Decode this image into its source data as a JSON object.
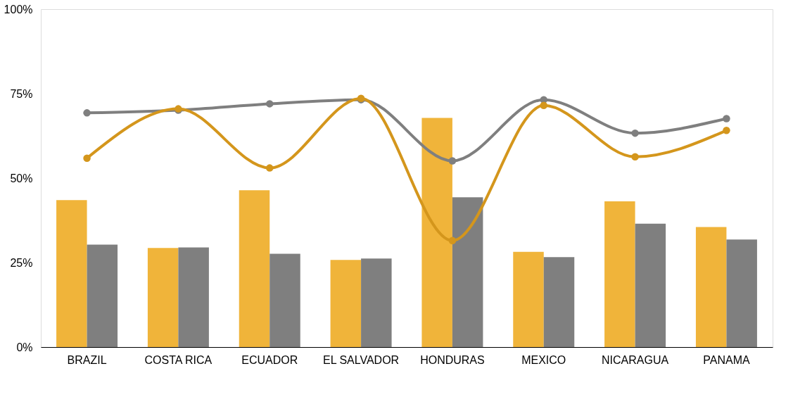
{
  "chart_data": {
    "type": "bar",
    "categories": [
      "BRAZIL",
      "COSTA RICA",
      "ECUADOR",
      "EL SALVADOR",
      "HONDURAS",
      "MEXICO",
      "NICARAGUA",
      "PANAMA"
    ],
    "series": [
      {
        "color": "#f0b43a",
        "values": [
          43.5,
          29.3,
          46.4,
          25.8,
          67.8,
          28.2,
          43.1,
          35.5
        ]
      },
      {
        "color": "#7f7f7f",
        "values": [
          30.3,
          29.5,
          27.6,
          26.2,
          44.3,
          26.6,
          36.5,
          31.8
        ]
      },
      {
        "type": "line",
        "color": "#7f7f7f",
        "marker": "circle",
        "values": [
          69.3,
          70.1,
          72.0,
          73.2,
          55.1,
          73.2,
          63.3,
          67.6
        ]
      },
      {
        "type": "line",
        "color": "#d4961c",
        "marker": "circle",
        "values": [
          55.9,
          70.5,
          53.0,
          73.6,
          31.5,
          71.5,
          56.3,
          64.1
        ]
      }
    ],
    "ylim": [
      0,
      100
    ],
    "yticks": [
      {
        "value": 0,
        "label": "0%"
      },
      {
        "value": 25,
        "label": "25%"
      },
      {
        "value": 50,
        "label": "50%"
      },
      {
        "value": 75,
        "label": "75%"
      },
      {
        "value": 100,
        "label": "100%"
      }
    ],
    "grid": false,
    "legend": false
  }
}
